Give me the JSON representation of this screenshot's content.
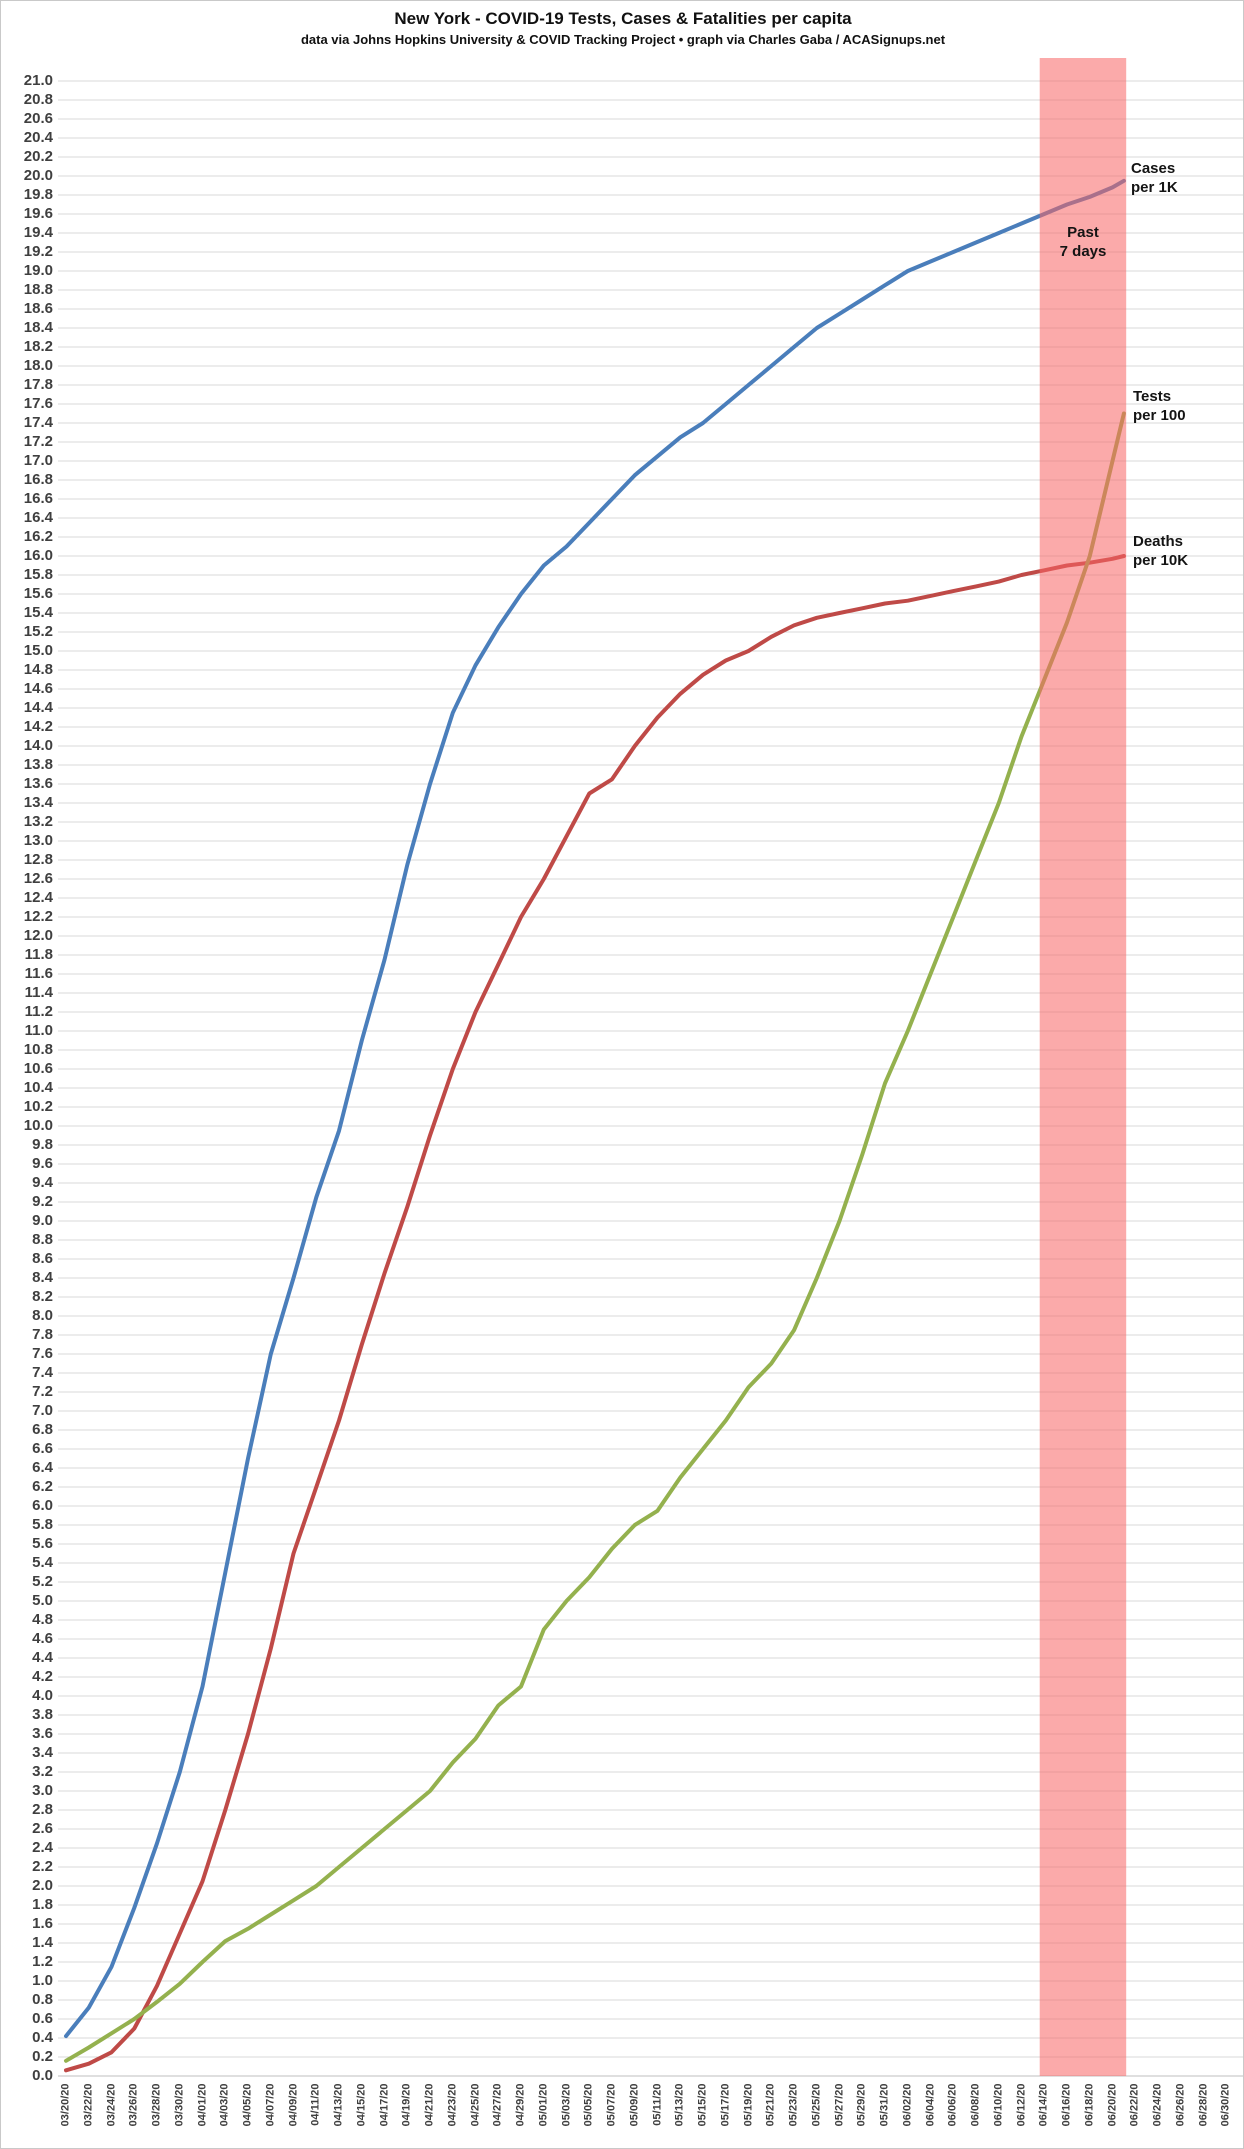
{
  "title": "New York - COVID-19 Tests, Cases & Fatalities per capita",
  "subtitle": "data via Johns Hopkins University & COVID Tracking Project • graph via Charles Gaba / ACASignups.net",
  "annotations": {
    "past_band": {
      "line1": "Past",
      "line2": "7 days"
    }
  },
  "colors": {
    "grid": "#d9d9d9",
    "baseline": "#bfbfbf",
    "axis_text": "#3f3f3f",
    "title_text": "#111111",
    "frame": "#c9c9c9",
    "background": "#ffffff",
    "band": "rgba(247,100,100,0.55)"
  },
  "chart_data": {
    "type": "line",
    "title": "New York - COVID-19 Tests, Cases & Fatalities per capita",
    "subtitle": "data via Johns Hopkins University & COVID Tracking Project • graph via Charles Gaba / ACASignups.net",
    "grid": true,
    "legend_position": "line-end labels at right",
    "y_axis": {
      "min": 0,
      "max": 21,
      "step": 0.2,
      "tick_format": "0.0"
    },
    "x_axis": {
      "tick_interval_days": 2,
      "tick_labels": [
        "03/20/20",
        "03/22/20",
        "03/24/20",
        "03/26/20",
        "03/28/20",
        "03/30/20",
        "04/01/20",
        "04/03/20",
        "04/05/20",
        "04/07/20",
        "04/09/20",
        "04/11/20",
        "04/13/20",
        "04/15/20",
        "04/17/20",
        "04/19/20",
        "04/21/20",
        "04/23/20",
        "04/25/20",
        "04/27/20",
        "04/29/20",
        "05/01/20",
        "05/03/20",
        "05/05/20",
        "05/07/20",
        "05/09/20",
        "05/11/20",
        "05/13/20",
        "05/15/20",
        "05/17/20",
        "05/19/20",
        "05/21/20",
        "05/23/20",
        "05/25/20",
        "05/27/20",
        "05/29/20",
        "05/31/20",
        "06/02/20",
        "06/04/20",
        "06/06/20",
        "06/08/20",
        "06/10/20",
        "06/12/20",
        "06/14/20",
        "06/16/20",
        "06/18/20",
        "06/20/20",
        "06/22/20",
        "06/24/20",
        "06/26/20",
        "06/28/20",
        "06/30/20"
      ]
    },
    "x_days": [
      0,
      2,
      4,
      6,
      8,
      10,
      12,
      14,
      16,
      18,
      20,
      22,
      24,
      26,
      28,
      30,
      32,
      34,
      36,
      38,
      40,
      42,
      44,
      46,
      48,
      50,
      52,
      54,
      56,
      58,
      60,
      62,
      64,
      66,
      68,
      70,
      72,
      74,
      76,
      78,
      80,
      82,
      84,
      86,
      88,
      90,
      92,
      93
    ],
    "series": [
      {
        "name": "Cases per 1K",
        "label_lines": [
          "Cases",
          "per 1K"
        ],
        "color": "#4a7ebb",
        "values": [
          0.42,
          0.72,
          1.15,
          1.77,
          2.45,
          3.2,
          4.1,
          5.3,
          6.5,
          7.6,
          8.4,
          9.25,
          9.95,
          10.9,
          11.75,
          12.75,
          13.6,
          14.35,
          14.85,
          15.25,
          15.6,
          15.9,
          16.1,
          16.35,
          16.6,
          16.85,
          17.05,
          17.25,
          17.4,
          17.6,
          17.8,
          18.0,
          18.2,
          18.4,
          18.55,
          18.7,
          18.85,
          19.0,
          19.1,
          19.2,
          19.3,
          19.4,
          19.5,
          19.6,
          19.7,
          19.78,
          19.88,
          19.95
        ]
      },
      {
        "name": "Deaths per 10K",
        "label_lines": [
          "Deaths",
          "per 10K"
        ],
        "color": "#bf4a47",
        "values": [
          0.06,
          0.13,
          0.25,
          0.5,
          0.95,
          1.5,
          2.05,
          2.8,
          3.6,
          4.5,
          5.5,
          6.2,
          6.9,
          7.7,
          8.45,
          9.15,
          9.9,
          10.6,
          11.2,
          11.7,
          12.2,
          12.6,
          13.05,
          13.5,
          13.65,
          14.0,
          14.3,
          14.55,
          14.75,
          14.9,
          15.0,
          15.15,
          15.27,
          15.35,
          15.4,
          15.45,
          15.5,
          15.53,
          15.58,
          15.63,
          15.68,
          15.73,
          15.8,
          15.85,
          15.9,
          15.93,
          15.97,
          16.0
        ]
      },
      {
        "name": "Tests per 100",
        "label_lines": [
          "Tests",
          "per 100"
        ],
        "color": "#94b14e",
        "values": [
          0.16,
          0.3,
          0.45,
          0.6,
          0.78,
          0.97,
          1.2,
          1.42,
          1.55,
          1.7,
          1.85,
          2.0,
          2.2,
          2.4,
          2.6,
          2.8,
          3.0,
          3.3,
          3.55,
          3.9,
          4.1,
          4.7,
          5.0,
          5.25,
          5.55,
          5.8,
          5.95,
          6.3,
          6.6,
          6.9,
          7.25,
          7.5,
          7.85,
          8.4,
          9.0,
          9.7,
          10.45,
          11.0,
          11.6,
          12.2,
          12.8,
          13.4,
          14.1,
          14.7,
          15.3,
          16.0,
          17.0,
          17.5
        ]
      }
    ],
    "highlight_band": {
      "label": "Past 7 days",
      "start_day": 85.6,
      "end_day": 93.2,
      "start_date": "06/13/20",
      "end_date": "06/21/20",
      "color": "rgba(247,100,100,0.55)"
    }
  }
}
